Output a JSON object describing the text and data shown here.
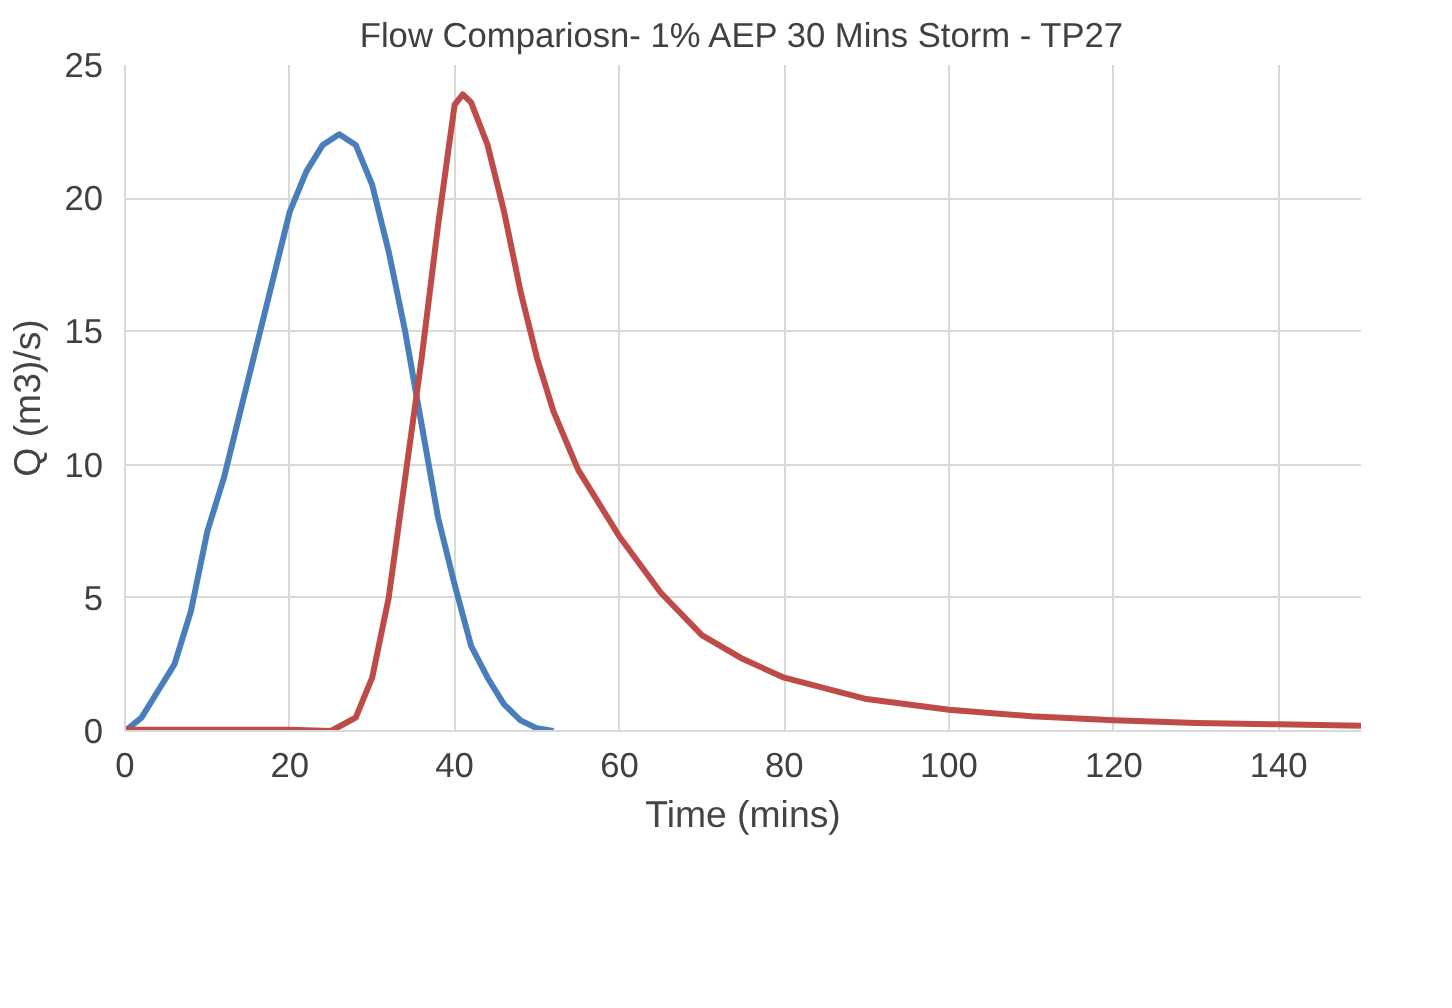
{
  "chart_data": {
    "type": "line",
    "title": "Flow Compariosn- 1% AEP 30 Mins Storm - TP27",
    "xlabel": "Time (mins)",
    "ylabel": "Q (m3)/s)",
    "xlim": [
      0,
      150
    ],
    "xticks": [
      0,
      20,
      40,
      60,
      80,
      100,
      120,
      140
    ],
    "ylim": [
      0,
      25
    ],
    "yticks": [
      0,
      5,
      10,
      15,
      20,
      25
    ],
    "grid": true,
    "marker": "none",
    "line_style": "solid",
    "series": [
      {
        "color": "#4a7ebb",
        "x": [
          0,
          2,
          4,
          6,
          8,
          10,
          12,
          14,
          16,
          18,
          20,
          22,
          24,
          26,
          28,
          30,
          32,
          34,
          36,
          38,
          40,
          42,
          44,
          46,
          48,
          50,
          52
        ],
        "values": [
          0,
          0.5,
          1.5,
          2.5,
          4.5,
          7.5,
          9.5,
          12,
          14.5,
          17,
          19.5,
          21,
          22,
          22.4,
          22,
          20.5,
          18,
          15,
          11.5,
          8,
          5.5,
          3.2,
          2,
          1,
          0.4,
          0.1,
          0
        ]
      },
      {
        "color": "#be4b48",
        "x": [
          0,
          20,
          25,
          28,
          30,
          32,
          34,
          36,
          38,
          40,
          41,
          42,
          44,
          46,
          48,
          50,
          52,
          55,
          60,
          65,
          70,
          75,
          80,
          90,
          100,
          110,
          120,
          130,
          140,
          150
        ],
        "values": [
          0.05,
          0.05,
          0,
          0.5,
          2,
          5,
          9.5,
          14,
          19,
          23.5,
          23.9,
          23.6,
          22,
          19.5,
          16.5,
          14,
          12,
          9.8,
          7.3,
          5.2,
          3.6,
          2.7,
          2,
          1.2,
          0.8,
          0.55,
          0.4,
          0.3,
          0.25,
          0.2
        ]
      }
    ]
  }
}
